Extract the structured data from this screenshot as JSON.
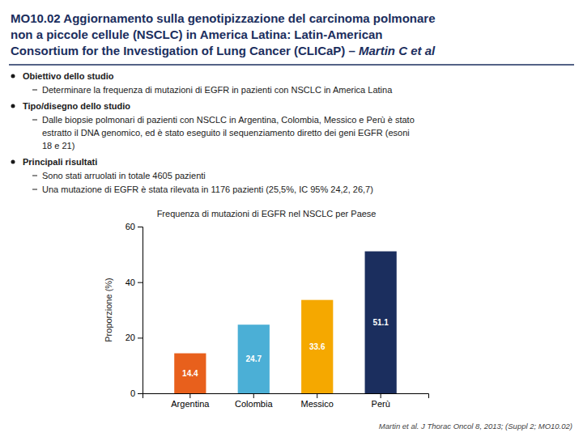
{
  "heading_lines": [
    "MO10.02 Aggiornamento sulla genotipizzazione del carcinoma polmonare",
    "non a piccole cellule (NSCLC) in America Latina: Latin-American",
    "Consortium for the Investigation of Lung Cancer (CLICaP) – "
  ],
  "heading_emphasis": "Martin C et al",
  "bullets": [
    {
      "heading": "Obiettivo dello studio",
      "points": [
        [
          "Determinare la frequenza di mutazioni di EGFR in pazienti con NSCLC in America Latina"
        ]
      ]
    },
    {
      "heading": "Tipo/disegno dello studio",
      "points": [
        [
          "Dalle biopsie polmonari di pazienti con NSCLC in Argentina, Colombia, Messico e Perù è stato",
          "estratto il DNA genomico, ed è stato eseguito il sequenziamento diretto dei geni EGFR (esoni",
          "18 e 21)"
        ]
      ]
    },
    {
      "heading": "Principali risultati",
      "points": [
        [
          "Sono stati arruolati in totale 4605 pazienti"
        ],
        [
          "Una mutazione di EGFR è stata rilevata in 1176 pazienti (25,5%, IC 95% 24,2, 26,7)"
        ]
      ]
    }
  ],
  "citation": "Martin et al. J Thorac Oncol 8, 2013; (Suppl 2; MO10.02)",
  "chart_data": {
    "type": "bar",
    "title": "Frequenza di mutazioni di EGFR nel NSCLC per Paese",
    "categories": [
      "Argentina",
      "Colombia",
      "Messico",
      "Perù"
    ],
    "values": [
      14.4,
      24.7,
      33.6,
      51.1
    ],
    "colors": [
      "#E8601C",
      "#4BAFD6",
      "#F5A800",
      "#1B2E5E"
    ],
    "ylabel": "Proporzione (%)",
    "ylim": [
      0,
      60
    ],
    "yticks": [
      0,
      20,
      40,
      60
    ],
    "data_labels": true,
    "grid": false
  }
}
